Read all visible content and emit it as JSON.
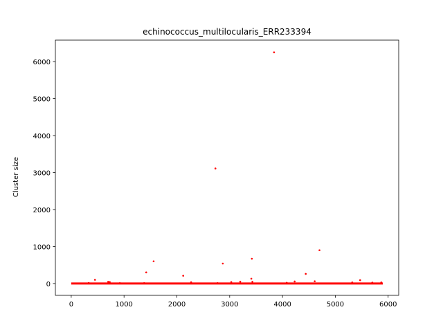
{
  "chart_data": {
    "type": "scatter",
    "title": "echinococcus_multilocularis_ERR233394",
    "xlabel": "",
    "ylabel": "Cluster size",
    "xlim": [
      -300,
      6200
    ],
    "ylim": [
      -320,
      6580
    ],
    "xticks": [
      0,
      1000,
      2000,
      3000,
      4000,
      5000,
      6000
    ],
    "yticks": [
      0,
      1000,
      2000,
      3000,
      4000,
      5000,
      6000
    ],
    "grid": false,
    "marker_color": "#ff0000",
    "dense_baseline": {
      "x_start": 0,
      "x_end": 5900,
      "y": 0
    },
    "series": [
      {
        "x": [
          3840,
          2730,
          4700,
          3420,
          1560,
          2870,
          1420,
          2120,
          4440,
          3410,
          450,
          5470,
          4610,
          4230,
          3200,
          700,
          3430,
          730,
          3030,
          2270,
          5870,
          5320,
          5700,
          4080,
          330,
          920,
          1380,
          2770
        ],
        "y": [
          6250,
          3110,
          900,
          670,
          600,
          540,
          300,
          210,
          260,
          130,
          100,
          90,
          60,
          55,
          50,
          45,
          45,
          40,
          40,
          35,
          30,
          30,
          25,
          20,
          15,
          10,
          10,
          10
        ]
      }
    ]
  }
}
